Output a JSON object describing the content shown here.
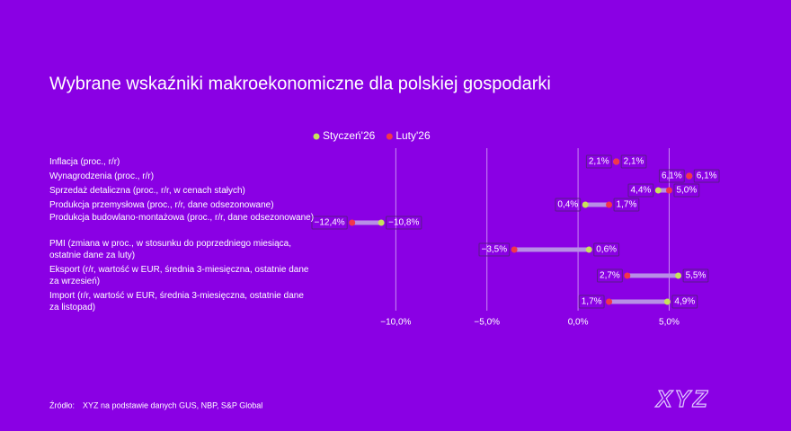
{
  "chart_data": {
    "type": "dumbbell",
    "title": "Wybrane wskaźniki makroekonomiczne dla polskiej gospodarki",
    "categories": [
      "Inflacja (proc., r/r)",
      "Wynagrodzenia (proc., r/r)",
      "Sprzedaż detaliczna (proc., r/r, w cenach stałych)",
      "Produkcja przemysłowa (proc., r/r, dane odsezonowane)",
      "Produkcja budowlano-montażowa (proc., r/r, dane odsezonowane)",
      "PMI (zmiana w proc., w stosunku do poprzedniego miesiąca, ostatnie dane za luty)",
      "Eksport (r/r, wartość w EUR, średnia 3-miesięczna, ostatnie dane za wrzesień)",
      "Import (r/r, wartość w EUR, średnia 3-miesięczna, ostatnie dane za listopad)"
    ],
    "series": [
      {
        "name": "Styczeń'26",
        "color": "#c6e35a",
        "values": [
          2.1,
          6.1,
          4.4,
          0.4,
          -10.8,
          0.6,
          5.5,
          4.9
        ],
        "value_labels": [
          "2,1%",
          "6,1%",
          "4,4%",
          "0,4%",
          "−10,8%",
          "0,6%",
          "5,5%",
          "4,9%"
        ]
      },
      {
        "name": "Luty'26",
        "color": "#f2364b",
        "values": [
          2.1,
          6.1,
          5.0,
          1.7,
          -12.4,
          -3.5,
          2.7,
          1.7
        ],
        "value_labels": [
          "2,1%",
          "6,1%",
          "5,0%",
          "1,7%",
          "−12,4%",
          "−3,5%",
          "2,7%",
          "1,7%"
        ]
      }
    ],
    "xlim": [
      -15,
      7
    ],
    "xticks": [
      {
        "value": -10,
        "label": "−10,0%"
      },
      {
        "value": -5,
        "label": "−5,0%"
      },
      {
        "value": 0,
        "label": "0,0%"
      },
      {
        "value": 5,
        "label": "5,0%"
      }
    ],
    "grid": true,
    "legend": "top",
    "source_label": "Źródło:",
    "source": "XYZ na podstawie danych GUS, NBP, S&P Global",
    "logo": "XYZ"
  }
}
